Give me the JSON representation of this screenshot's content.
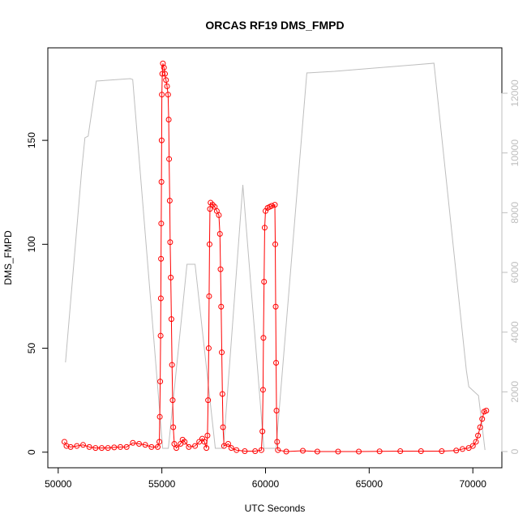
{
  "chart_data": {
    "type": "line",
    "title": "ORCAS RF19 DMS_FMPD",
    "xlabel": "UTC Seconds",
    "ylabel": "DMS_FMPD",
    "xlim": [
      49500,
      71400
    ],
    "xticks": [
      50000,
      55000,
      60000,
      65000,
      70000
    ],
    "ylim": [
      -7.5,
      194.5
    ],
    "yticks": [
      0,
      50,
      100,
      150
    ],
    "y2lim": [
      -543,
      13521
    ],
    "y2ticks": [
      0,
      2000,
      4000,
      6000,
      8000,
      10000,
      12000
    ],
    "series": [
      {
        "color": "#ff0000",
        "marker": "circle",
        "x": [
          50300,
          50400,
          50600,
          50900,
          51200,
          51500,
          51800,
          52100,
          52400,
          52700,
          53000,
          53300,
          53600,
          53900,
          54200,
          54500,
          54800,
          54880,
          54900,
          54920,
          54940,
          54950,
          54960,
          54970,
          54980,
          54990,
          55000,
          55020,
          55050,
          55100,
          55150,
          55200,
          55250,
          55300,
          55330,
          55350,
          55380,
          55400,
          55430,
          55460,
          55490,
          55520,
          55550,
          55600,
          55700,
          55900,
          56000,
          56100,
          56300,
          56600,
          56800,
          56950,
          57050,
          57150,
          57200,
          57230,
          57260,
          57280,
          57300,
          57320,
          57350,
          57450,
          57550,
          57650,
          57750,
          57800,
          57830,
          57860,
          57890,
          57920,
          57950,
          58000,
          58200,
          58350,
          58600,
          59000,
          59500,
          59800,
          59850,
          59880,
          59900,
          59930,
          59960,
          60000,
          60100,
          60200,
          60300,
          60450,
          60470,
          60490,
          60510,
          60530,
          60560,
          60600,
          61000,
          61800,
          62500,
          63500,
          64500,
          65500,
          66500,
          67500,
          68500,
          69200,
          69500,
          69800,
          70000,
          70150,
          70250,
          70350,
          70450,
          70550,
          70650
        ],
        "values": [
          5,
          3,
          2.5,
          3,
          3.5,
          2.5,
          2,
          2,
          2,
          2.3,
          2.5,
          2.5,
          4.5,
          4,
          3.5,
          2.5,
          2.5,
          5,
          17,
          34,
          56,
          74,
          93,
          110,
          130,
          150,
          172,
          182,
          187,
          185,
          182,
          179,
          176,
          172,
          160,
          141,
          121,
          101,
          84,
          64,
          42,
          25,
          12,
          4,
          2,
          4,
          6,
          5,
          2.5,
          3,
          5,
          6.5,
          5,
          2,
          8,
          25,
          50,
          75,
          100,
          117,
          120,
          119,
          118,
          116,
          114,
          105,
          88,
          70,
          48,
          28,
          12,
          3,
          4,
          2,
          1,
          0.5,
          0.5,
          1,
          10,
          30,
          55,
          82,
          108,
          116,
          117.5,
          118,
          118.5,
          119,
          100,
          70,
          43,
          20,
          5,
          1,
          0.3,
          0.7,
          0.3,
          0.3,
          0.3,
          0.4,
          0.5,
          0.5,
          0.5,
          0.8,
          1.5,
          2,
          3,
          5,
          8,
          12,
          16,
          19.5,
          20
        ]
      },
      {
        "color": "#bebebe",
        "axis": "y2",
        "x": [
          50352,
          51133,
          51289,
          51445,
          51836,
          53477,
          53594,
          55039,
          55313,
          56211,
          56602,
          57578,
          57969,
          58906,
          59922,
          60508,
          61992,
          63320,
          68125,
          69688,
          69805,
          70273,
          70586
        ],
        "values": [
          2987,
          9422,
          10508,
          10562,
          12408,
          12490,
          12460,
          109,
          109,
          6272,
          6272,
          109,
          109,
          8933,
          109,
          109,
          12680,
          12734,
          13006,
          2715,
          2172,
          1873,
          54
        ]
      }
    ]
  }
}
